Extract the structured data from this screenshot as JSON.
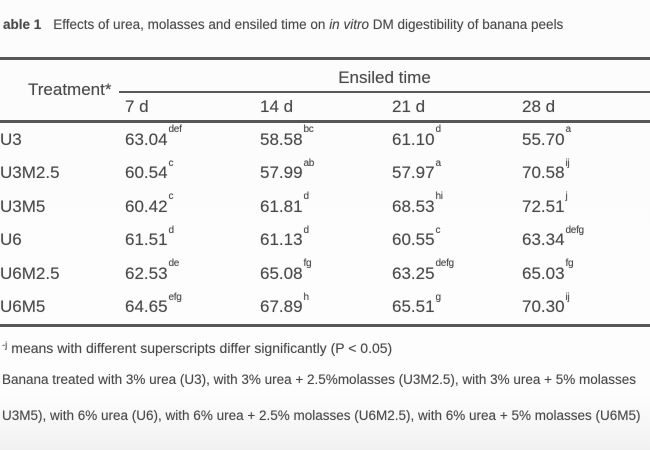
{
  "title": {
    "bold": "able 1",
    "pre_italic": "Effects of urea, molasses and ensiled time on ",
    "italic": "in vitro",
    "post_italic": " DM digestibility of banana peels"
  },
  "table": {
    "treatment_header": "Treatment*",
    "span_header": "Ensiled time",
    "columns": [
      "7 d",
      "14 d",
      "21 d",
      "28 d"
    ],
    "rows": [
      {
        "treatment": "U3",
        "values": [
          {
            "v": "63.04",
            "sup": "def"
          },
          {
            "v": "58.58",
            "sup": "bc"
          },
          {
            "v": "61.10",
            "sup": "d"
          },
          {
            "v": "55.70",
            "sup": "a"
          }
        ]
      },
      {
        "treatment": "U3M2.5",
        "values": [
          {
            "v": "60.54",
            "sup": "c"
          },
          {
            "v": "57.99",
            "sup": "ab"
          },
          {
            "v": "57.97",
            "sup": "a"
          },
          {
            "v": "70.58",
            "sup": "ij"
          }
        ]
      },
      {
        "treatment": "U3M5",
        "values": [
          {
            "v": "60.42",
            "sup": "c"
          },
          {
            "v": "61.81",
            "sup": "d"
          },
          {
            "v": "68.53",
            "sup": "hi"
          },
          {
            "v": "72.51",
            "sup": "j"
          }
        ]
      },
      {
        "treatment": "U6",
        "values": [
          {
            "v": "61.51",
            "sup": "d"
          },
          {
            "v": "61.13",
            "sup": "d"
          },
          {
            "v": "60.55",
            "sup": "c"
          },
          {
            "v": "63.34",
            "sup": "defg"
          }
        ]
      },
      {
        "treatment": "U6M2.5",
        "values": [
          {
            "v": "62.53",
            "sup": "de"
          },
          {
            "v": "65.08",
            "sup": "fg"
          },
          {
            "v": "63.25",
            "sup": "defg"
          },
          {
            "v": "65.03",
            "sup": "fg"
          }
        ]
      },
      {
        "treatment": "U6M5",
        "values": [
          {
            "v": "64.65",
            "sup": "efg"
          },
          {
            "v": "67.89",
            "sup": "h"
          },
          {
            "v": "65.51",
            "sup": "g"
          },
          {
            "v": "70.30",
            "sup": "ij"
          }
        ]
      }
    ]
  },
  "footnotes": {
    "significance_sup": "-j",
    "significance_text": "means  with different superscripts differ significantly (P < 0.05)",
    "treatments_line1": "Banana treated with 3% urea (U3), with 3% urea + 2.5%molasses (U3M2.5),  with 3% urea + 5% molasses",
    "treatments_line2": "U3M5), with 6% urea (U6),  with 6% urea + 2.5% molasses (U6M2.5),  with 6% urea + 5% molasses (U6M5)"
  }
}
